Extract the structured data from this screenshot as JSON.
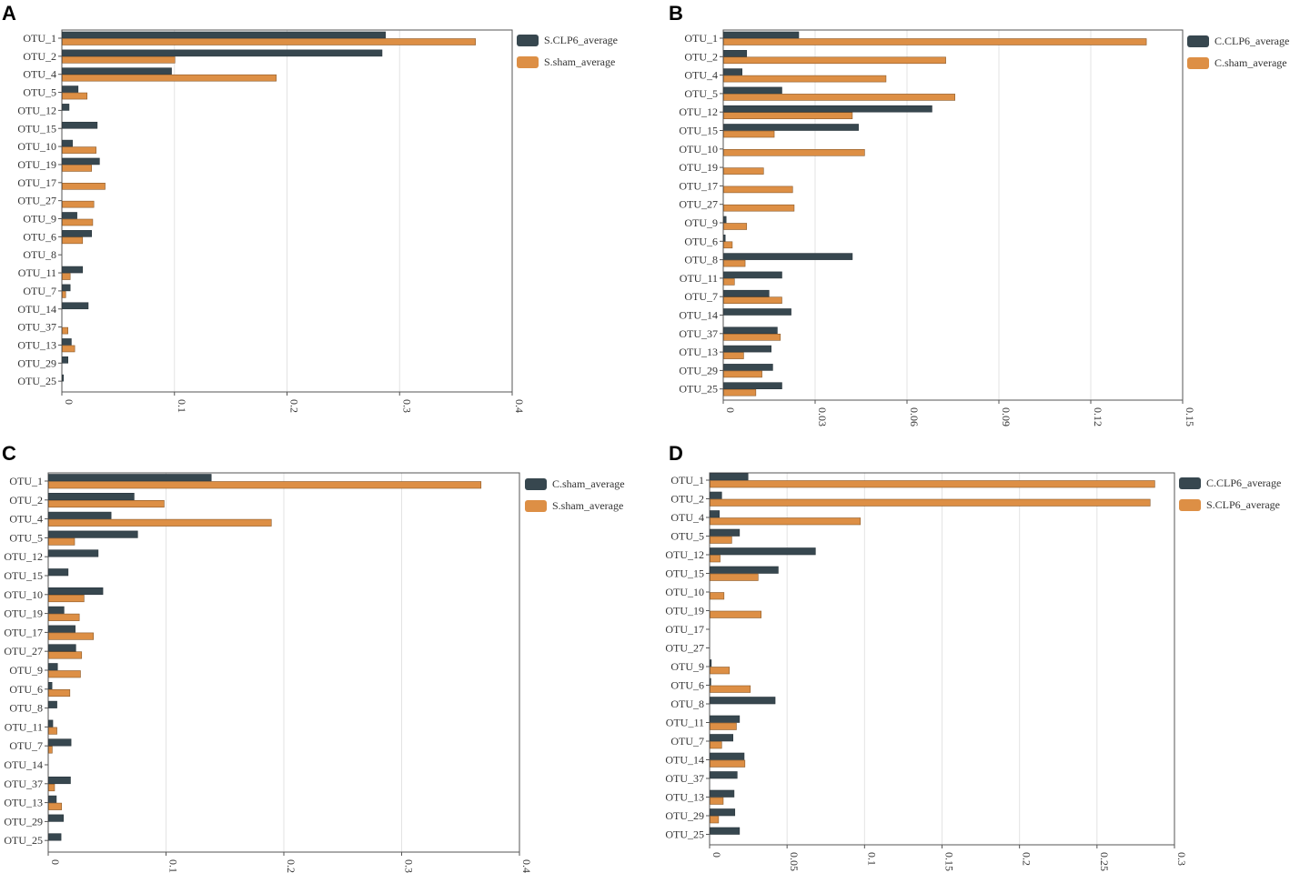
{
  "colors": {
    "dark": "#37474f",
    "orange": "#dd8f45",
    "barStroke": "#8a5a2b"
  },
  "chart_data": [
    {
      "panel": "A",
      "type": "bar",
      "orientation": "horizontal",
      "categories": [
        "OTU_1",
        "OTU_2",
        "OTU_4",
        "OTU_5",
        "OTU_12",
        "OTU_15",
        "OTU_10",
        "OTU_19",
        "OTU_17",
        "OTU_27",
        "OTU_9",
        "OTU_6",
        "OTU_8",
        "OTU_11",
        "OTU_7",
        "OTU_14",
        "OTU_37",
        "OTU_13",
        "OTU_29",
        "OTU_25"
      ],
      "series": [
        {
          "name": "S.CLP6_average",
          "color": "dark",
          "values": [
            0.287,
            0.284,
            0.097,
            0.014,
            0.006,
            0.031,
            0.009,
            0.033,
            0.0,
            0.0,
            0.013,
            0.026,
            0.0,
            0.018,
            0.007,
            0.023,
            0.0,
            0.008,
            0.005,
            0.001
          ]
        },
        {
          "name": "S.sham_average",
          "color": "orange",
          "values": [
            0.367,
            0.1,
            0.19,
            0.022,
            0.0,
            0.0,
            0.03,
            0.026,
            0.038,
            0.028,
            0.027,
            0.018,
            0.0,
            0.007,
            0.003,
            0.0,
            0.005,
            0.011,
            0.0,
            0.0
          ]
        }
      ],
      "xlim": [
        0,
        0.4
      ],
      "ticks": [
        "0",
        "0.1",
        "0.2",
        "0.3",
        "0.4"
      ]
    },
    {
      "panel": "B",
      "type": "bar",
      "orientation": "horizontal",
      "categories": [
        "OTU_1",
        "OTU_2",
        "OTU_4",
        "OTU_5",
        "OTU_12",
        "OTU_15",
        "OTU_10",
        "OTU_19",
        "OTU_17",
        "OTU_27",
        "OTU_9",
        "OTU_6",
        "OTU_8",
        "OTU_11",
        "OTU_7",
        "OTU_14",
        "OTU_37",
        "OTU_13",
        "OTU_29",
        "OTU_25"
      ],
      "series": [
        {
          "name": "C.CLP6_average",
          "color": "dark",
          "values": [
            0.0245,
            0.0075,
            0.006,
            0.019,
            0.068,
            0.044,
            0.0,
            0.0,
            0.0,
            0.0,
            0.0008,
            0.0005,
            0.042,
            0.019,
            0.0148,
            0.022,
            0.0175,
            0.0155,
            0.016,
            0.019
          ]
        },
        {
          "name": "C.sham_average",
          "color": "orange",
          "values": [
            0.138,
            0.0725,
            0.053,
            0.0755,
            0.042,
            0.0165,
            0.046,
            0.013,
            0.0225,
            0.023,
            0.0075,
            0.0028,
            0.007,
            0.0035,
            0.019,
            0.0,
            0.0185,
            0.0065,
            0.0125,
            0.0105
          ]
        }
      ],
      "xlim": [
        0,
        0.15
      ],
      "ticks": [
        "0",
        "0.03",
        "0.06",
        "0.09",
        "0.12",
        "0.15"
      ]
    },
    {
      "panel": "C",
      "type": "bar",
      "orientation": "horizontal",
      "categories": [
        "OTU_1",
        "OTU_2",
        "OTU_4",
        "OTU_5",
        "OTU_12",
        "OTU_15",
        "OTU_10",
        "OTU_19",
        "OTU_17",
        "OTU_27",
        "OTU_9",
        "OTU_6",
        "OTU_8",
        "OTU_11",
        "OTU_7",
        "OTU_14",
        "OTU_37",
        "OTU_13",
        "OTU_29",
        "OTU_25"
      ],
      "series": [
        {
          "name": "C.sham_average",
          "color": "dark",
          "values": [
            0.138,
            0.0725,
            0.053,
            0.0755,
            0.042,
            0.0165,
            0.046,
            0.013,
            0.0225,
            0.023,
            0.0075,
            0.0028,
            0.007,
            0.0035,
            0.019,
            0.0,
            0.0185,
            0.0065,
            0.0125,
            0.0105
          ]
        },
        {
          "name": "S.sham_average",
          "color": "orange",
          "values": [
            0.367,
            0.098,
            0.189,
            0.022,
            0.0,
            0.0,
            0.03,
            0.026,
            0.038,
            0.028,
            0.027,
            0.018,
            0.0,
            0.007,
            0.003,
            0.0,
            0.005,
            0.011,
            0.0,
            0.0
          ]
        }
      ],
      "xlim": [
        0,
        0.4
      ],
      "ticks": [
        "0",
        "0.1",
        "0.2",
        "0.3",
        "0.4"
      ]
    },
    {
      "panel": "D",
      "type": "bar",
      "orientation": "horizontal",
      "categories": [
        "OTU_1",
        "OTU_2",
        "OTU_4",
        "OTU_5",
        "OTU_12",
        "OTU_15",
        "OTU_10",
        "OTU_19",
        "OTU_17",
        "OTU_27",
        "OTU_9",
        "OTU_6",
        "OTU_8",
        "OTU_11",
        "OTU_7",
        "OTU_14",
        "OTU_37",
        "OTU_13",
        "OTU_29",
        "OTU_25"
      ],
      "series": [
        {
          "name": "C.CLP6_average",
          "color": "dark",
          "values": [
            0.0245,
            0.0075,
            0.006,
            0.019,
            0.068,
            0.044,
            0.0,
            0.0,
            0.0,
            0.0,
            0.0008,
            0.0005,
            0.042,
            0.019,
            0.0148,
            0.022,
            0.0175,
            0.0155,
            0.016,
            0.019
          ]
        },
        {
          "name": "S.CLP6_average",
          "color": "orange",
          "values": [
            0.287,
            0.284,
            0.097,
            0.014,
            0.0065,
            0.031,
            0.009,
            0.033,
            0.0,
            0.0,
            0.0125,
            0.026,
            0.0,
            0.017,
            0.0075,
            0.0225,
            0.0,
            0.0085,
            0.0055,
            0.0
          ]
        }
      ],
      "xlim": [
        0,
        0.3
      ],
      "ticks": [
        "0",
        "0.05",
        "0.1",
        "0.15",
        "0.2",
        "0.25",
        "0.3"
      ]
    }
  ]
}
